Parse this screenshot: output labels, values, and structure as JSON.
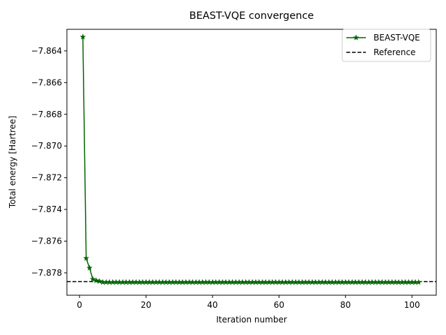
{
  "chart_data": {
    "type": "line",
    "title": "BEAST-VQE convergence",
    "xlabel": "Iteration number",
    "ylabel": "Total energy [Hartree]",
    "xlim": [
      -3.8,
      107.3
    ],
    "ylim": [
      -7.87941,
      -7.86264
    ],
    "xticks": [
      0,
      20,
      40,
      60,
      80,
      100
    ],
    "xtick_labels": [
      "0",
      "20",
      "40",
      "60",
      "80",
      "100"
    ],
    "yticks": [
      -7.864,
      -7.866,
      -7.868,
      -7.87,
      -7.872,
      -7.874,
      -7.876,
      -7.878
    ],
    "ytick_labels": [
      "−7.864",
      "−7.866",
      "−7.868",
      "−7.870",
      "−7.872",
      "−7.874",
      "−7.876",
      "−7.878"
    ],
    "series": [
      {
        "name": "BEAST-VQE",
        "color": "#006400",
        "marker": "star",
        "first_values": [
          -7.86312,
          -7.87708,
          -7.87769,
          -7.8784,
          -7.87848,
          -7.87853
        ],
        "converged_value": -7.87859,
        "x_start": 1,
        "x_end": 102
      }
    ],
    "reference": {
      "name": "Reference",
      "value": -7.87855,
      "color": "#000000"
    },
    "legend": {
      "placement": "top-right",
      "entries": [
        "BEAST-VQE",
        "Reference"
      ]
    },
    "grid": false
  }
}
